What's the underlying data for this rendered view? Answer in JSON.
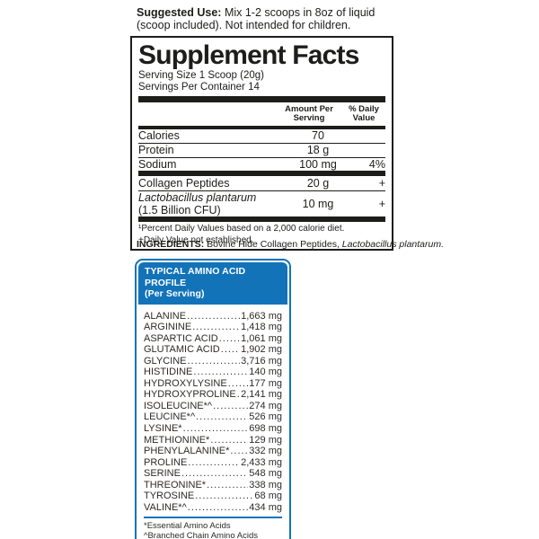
{
  "suggested_use": {
    "label": "Suggested Use:",
    "text": " Mix 1-2 scoops in 8oz of liquid (scoop included). Not intended for children."
  },
  "supplement_facts": {
    "title": "Supplement Facts",
    "serving_size": "Serving Size 1 Scoop (20g)",
    "servings_per_container": "Servings Per Container 14",
    "columns": {
      "amount": "Amount Per Serving",
      "dv": "% Daily Value"
    },
    "rows": [
      {
        "name": "Calories",
        "amount": "70",
        "dv": ""
      },
      {
        "name": "Protein",
        "amount": "18 g",
        "dv": ""
      },
      {
        "name": "Sodium",
        "amount": "100 mg",
        "dv": "4%"
      },
      {
        "name": "Collagen Peptides",
        "amount": "20 g",
        "dv": "+"
      },
      {
        "name": "Lactobacillus plantarum",
        "sub": "(1.5 Billion CFU)",
        "amount": "10 mg",
        "dv": "+"
      }
    ],
    "footnotes": [
      "¹Percent Daily Values based on a 2,000 calorie diet.",
      "+Daily Value not established."
    ]
  },
  "ingredients": {
    "label": "INGREDIENTS:",
    "text": " Bovine Hide Collagen Peptides, ",
    "italic_text": "Lactobacillus plantarum."
  },
  "amino_profile": {
    "accent_color": "#1373b9",
    "title_line1": "TYPICAL AMINO ACID PROFILE",
    "title_line2": "(Per Serving)",
    "rows": [
      {
        "name": "ALANINE",
        "value": "1,663 mg"
      },
      {
        "name": "ARGININE",
        "value": "1,418 mg"
      },
      {
        "name": "ASPARTIC ACID",
        "value": "1,061 mg"
      },
      {
        "name": "GLUTAMIC ACID",
        "value": "1,902 mg"
      },
      {
        "name": "GLYCINE",
        "value": "3,716 mg"
      },
      {
        "name": "HISTIDINE",
        "value": "140 mg"
      },
      {
        "name": "HYDROXYLYSINE",
        "value": "177 mg"
      },
      {
        "name": "HYDROXYPROLINE",
        "value": "2,141 mg"
      },
      {
        "name": "ISOLEUCINE*^",
        "value": "274 mg"
      },
      {
        "name": "LEUCINE*^",
        "value": "526 mg"
      },
      {
        "name": "LYSINE*",
        "value": "698 mg"
      },
      {
        "name": "METHIONINE*",
        "value": "129 mg"
      },
      {
        "name": "PHENYLALANINE*",
        "value": "332 mg"
      },
      {
        "name": "PROLINE",
        "value": "2,433 mg"
      },
      {
        "name": "SERINE",
        "value": "548 mg"
      },
      {
        "name": "THREONINE*",
        "value": "338 mg"
      },
      {
        "name": "TYROSINE",
        "value": "68 mg"
      },
      {
        "name": "VALINE*^",
        "value": "434 mg"
      }
    ],
    "footnotes": [
      "*Essential Amino Acids",
      "^Branched Chain Amino Acids"
    ]
  }
}
